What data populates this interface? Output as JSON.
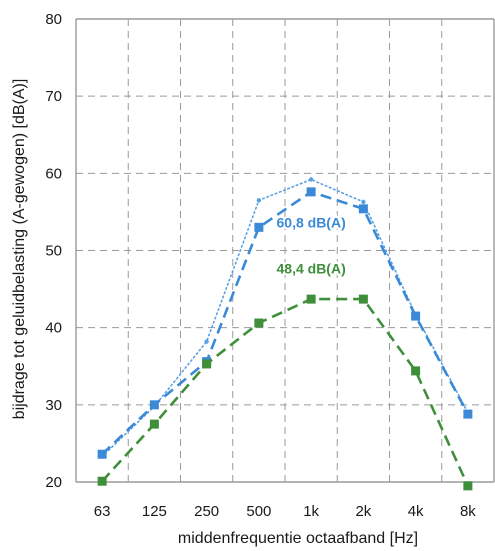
{
  "chart_data": {
    "type": "line",
    "xlabel": "middenfrequentie octaafband [Hz]",
    "ylabel": "bijdrage tot geluidbelasting (A-gewogen) [dB(A)]",
    "ylim": [
      20,
      80
    ],
    "yticks": [
      "20",
      "30",
      "40",
      "50",
      "60",
      "70",
      "80"
    ],
    "categories": [
      "63",
      "125",
      "250",
      "500",
      "1k",
      "2k",
      "4k",
      "8k"
    ],
    "grid": true,
    "series": [
      {
        "key": "blue_dotted",
        "color": "#5aa0e6",
        "style": "dotted",
        "values": [
          23.3,
          29.8,
          38.2,
          56.5,
          59.2,
          56.3,
          41.7,
          29.0
        ]
      },
      {
        "key": "blue_dashed",
        "color": "#3a8ad8",
        "style": "dashed",
        "values": [
          23.6,
          30.0,
          35.6,
          53.0,
          57.6,
          55.4,
          41.5,
          28.8
        ]
      },
      {
        "key": "green_dashed",
        "color": "#3f8f3a",
        "style": "dashed",
        "values": [
          20.1,
          27.5,
          35.3,
          40.6,
          43.7,
          43.7,
          34.4,
          19.5
        ]
      }
    ],
    "annotations": [
      {
        "text": "60,8 dB(A)",
        "color": "#3a8ad8",
        "x_cat": 4,
        "y": 53.0
      },
      {
        "text": "48,4 dB(A)",
        "color": "#3f8f3a",
        "x_cat": 4,
        "y": 47.0
      }
    ]
  }
}
